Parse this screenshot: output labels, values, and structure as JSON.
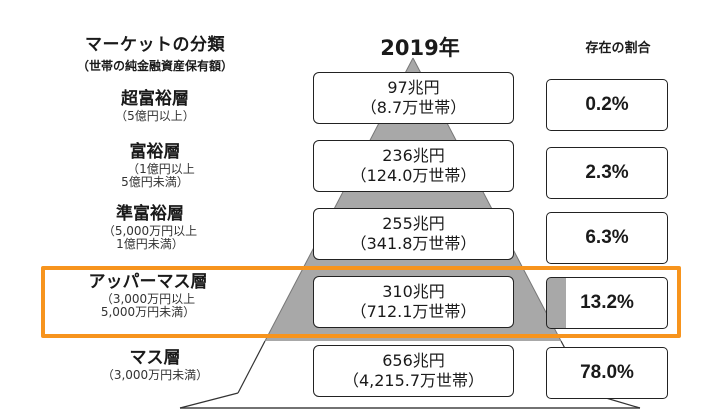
{
  "header": {
    "left_title": "マーケットの分類",
    "left_subtitle": "（世帯の純金融資産保有額）",
    "year": "2019年",
    "share_title": "存在の割合"
  },
  "tiers": [
    {
      "name": "超富裕層",
      "range": [
        "（5億円以上）"
      ],
      "amount": "97兆円",
      "households": "（8.7万世帯）",
      "share": "0.2%"
    },
    {
      "name": "富裕層",
      "range": [
        "（1億円以上",
        "5億円未満）"
      ],
      "amount": "236兆円",
      "households": "（124.0万世帯）",
      "share": "2.3%"
    },
    {
      "name": "準富裕層",
      "range": [
        "（5,000万円以上",
        "1億円未満）"
      ],
      "amount": "255兆円",
      "households": "（341.8万世帯）",
      "share": "6.3%"
    },
    {
      "name": "アッパーマス層",
      "range": [
        "（3,000万円以上",
        "5,000万円未満）"
      ],
      "amount": "310兆円",
      "households": "（712.1万世帯）",
      "share": "13.2%"
    },
    {
      "name": "マス層",
      "range": [
        "（3,000万円未満）"
      ],
      "amount": "656兆円",
      "households": "（4,215.7万世帯）",
      "share": "78.0%"
    }
  ],
  "colors": {
    "pyramid_fill": "#a8a8a8",
    "highlight_border": "#f7941d"
  },
  "highlighted_tier": "アッパーマス層"
}
